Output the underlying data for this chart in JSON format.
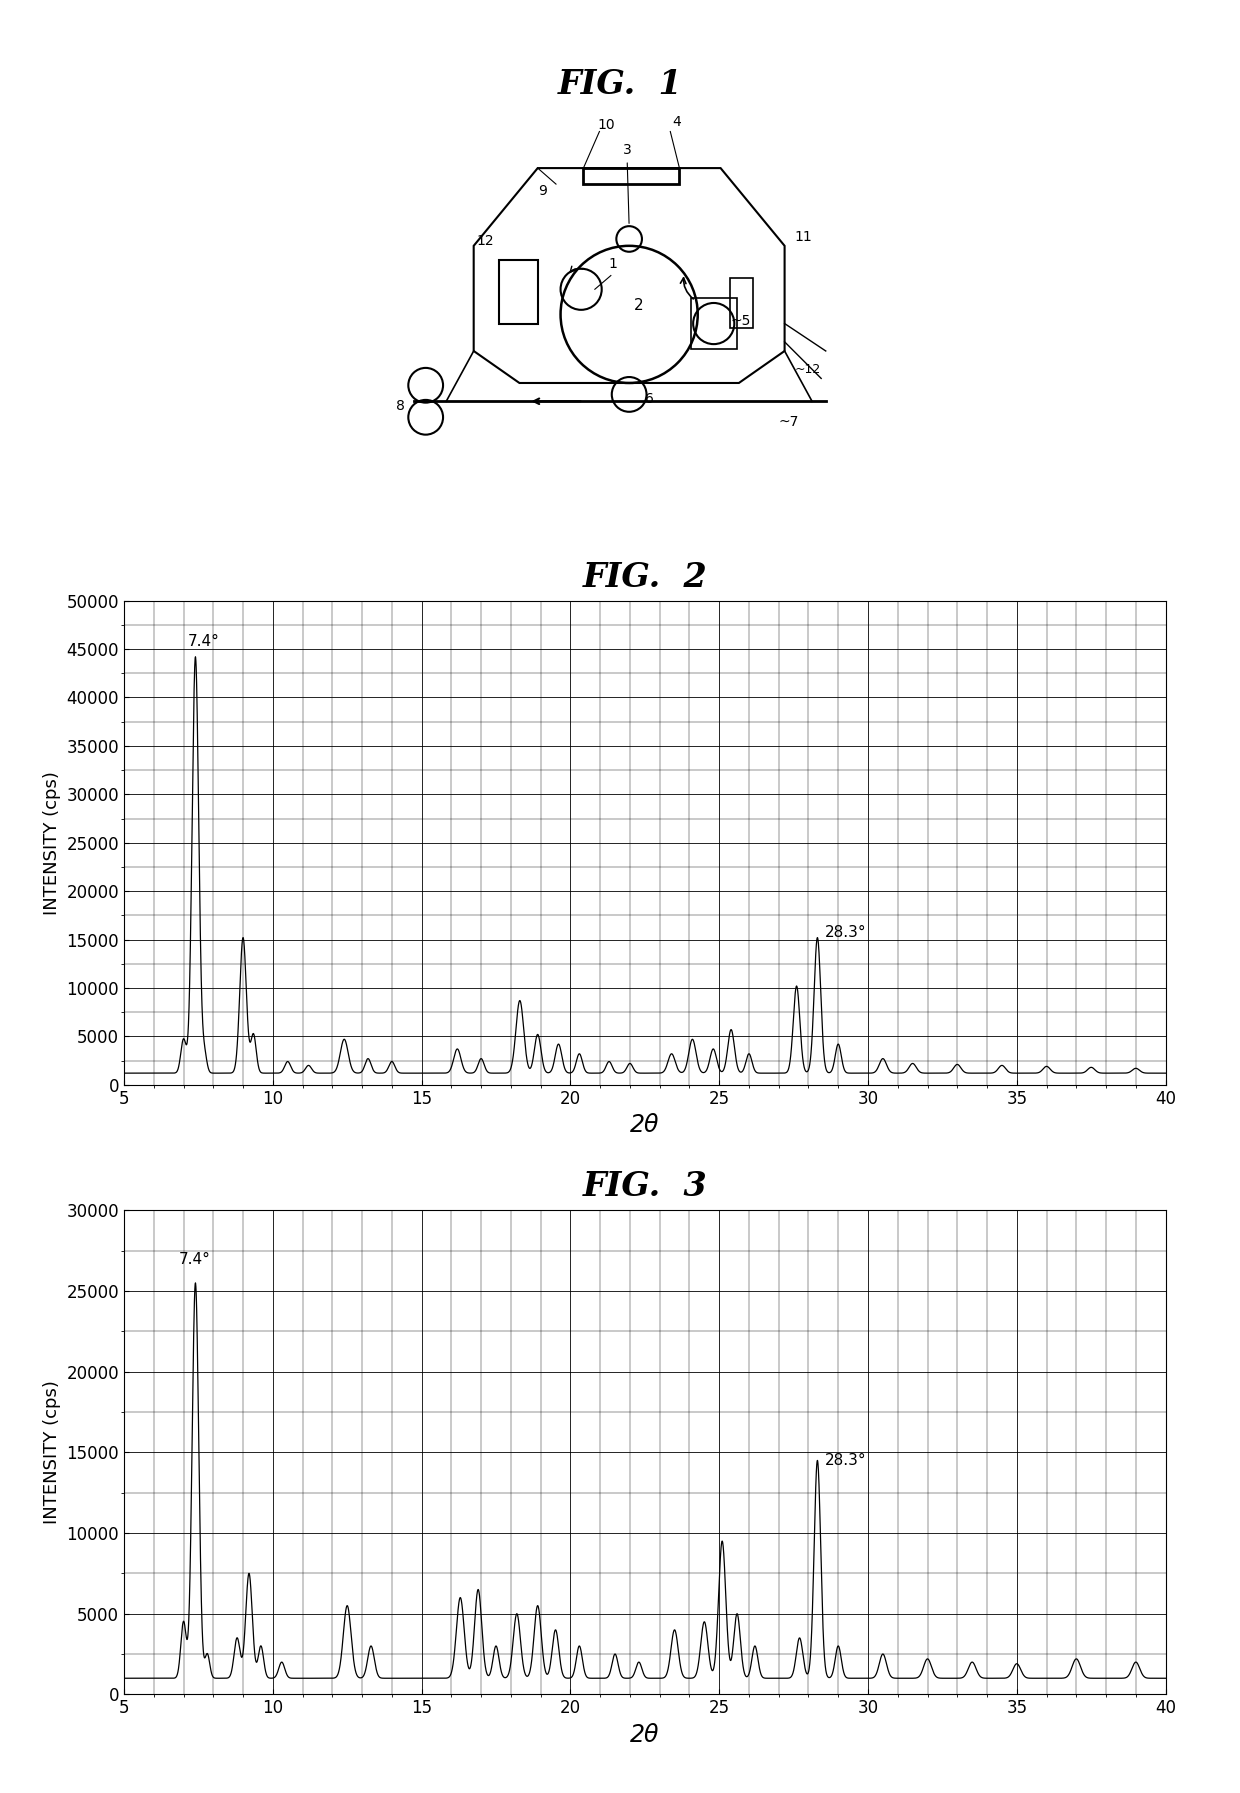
{
  "fig1_title": "FIG.  1",
  "fig2_title": "FIG.  2",
  "fig3_title": "FIG.  3",
  "fig2_ylabel": "INTENSITY (cps)",
  "fig2_xlabel": "2θ",
  "fig3_ylabel": "INTENSITY (cps)",
  "fig3_xlabel": "2θ",
  "fig2_xlim": [
    5,
    40
  ],
  "fig2_ylim": [
    0,
    50000
  ],
  "fig2_yticks": [
    0,
    5000,
    10000,
    15000,
    20000,
    25000,
    30000,
    35000,
    40000,
    45000,
    50000
  ],
  "fig2_xticks": [
    5,
    10,
    15,
    20,
    25,
    30,
    35,
    40
  ],
  "fig3_xlim": [
    5,
    40
  ],
  "fig3_ylim": [
    0,
    30000
  ],
  "fig3_yticks": [
    0,
    5000,
    10000,
    15000,
    20000,
    25000,
    30000
  ],
  "fig3_xticks": [
    5,
    10,
    15,
    20,
    25,
    30,
    35,
    40
  ],
  "fig2_peak1_label": "7.4°",
  "fig2_peak2_label": "28.3°",
  "fig3_peak1_label": "7.4°",
  "fig3_peak2_label": "28.3°",
  "line_color": "#000000",
  "background_color": "#ffffff",
  "grid_color": "#000000",
  "title_fontsize": 24,
  "label_fontsize": 14,
  "tick_fontsize": 12
}
